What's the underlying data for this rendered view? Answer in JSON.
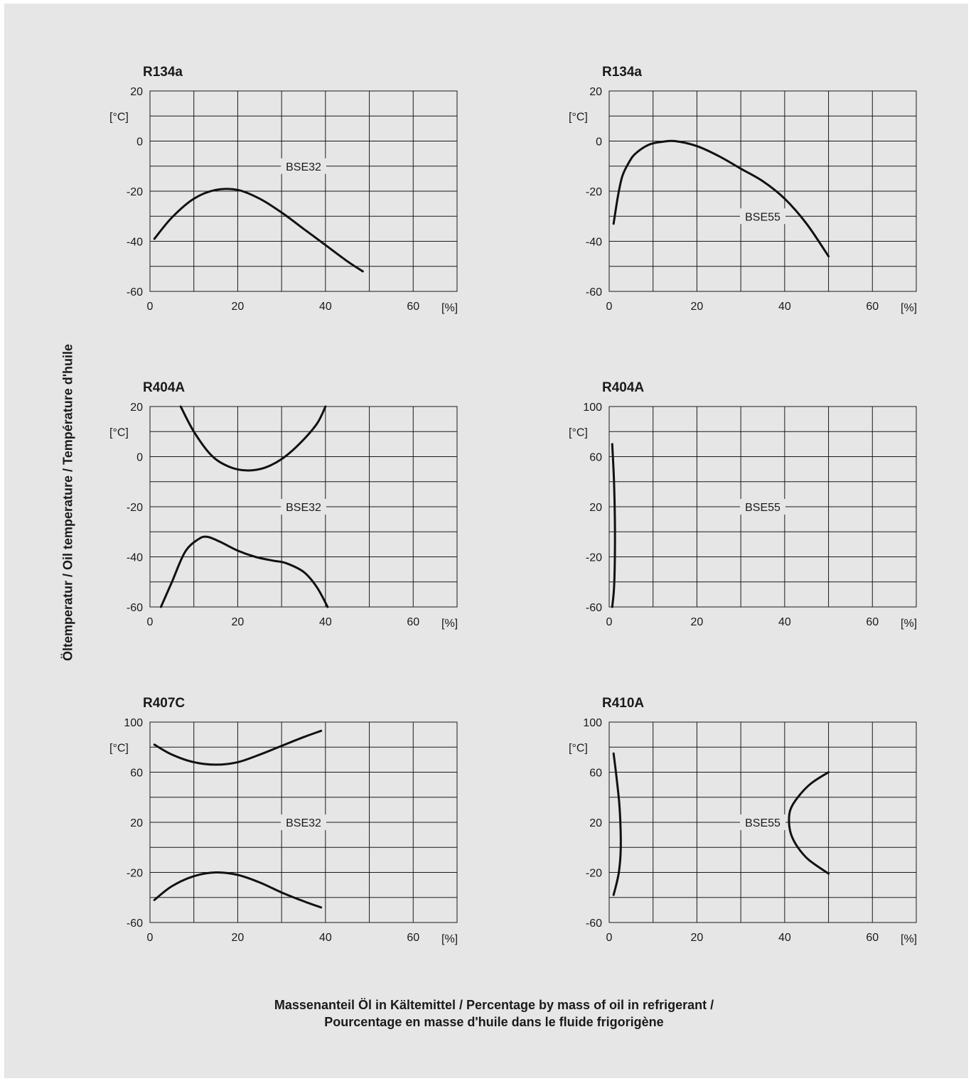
{
  "figure": {
    "ylabel": "Öltemperatur / Oil temperature / Température d'huile",
    "xlabel_line1": "Massenanteil Öl in Kältemittel / Percentage by mass of oil in refrigerant /",
    "xlabel_line2": "Pourcentage en masse d'huile dans le fluide frigorigène",
    "colors": {
      "background": "#e6e6e6",
      "grid": "#1a1a1a",
      "curve": "#111111"
    }
  },
  "chart_data": [
    {
      "type": "line",
      "title": "R134a",
      "oil_label": "BSE32",
      "ylabel": "[°C]",
      "xunit": "[%]",
      "xlim": [
        0,
        70
      ],
      "ylim": [
        -60,
        20
      ],
      "xticks": [
        0,
        20,
        40,
        60
      ],
      "yticks": [
        20,
        0,
        -20,
        -40,
        -60
      ],
      "grid": true,
      "series": [
        {
          "x": [
            1,
            5,
            10,
            15,
            20,
            25,
            30,
            35,
            40,
            45,
            48.5
          ],
          "y": [
            -39,
            -30.5,
            -23,
            -19.5,
            -19.5,
            -23,
            -28.5,
            -35,
            -41.5,
            -48,
            -52
          ]
        }
      ]
    },
    {
      "type": "line",
      "title": "R134a",
      "oil_label": "BSE55",
      "ylabel": "[°C]",
      "xunit": "[%]",
      "xlim": [
        0,
        70
      ],
      "ylim": [
        -60,
        20
      ],
      "xticks": [
        0,
        20,
        40,
        60
      ],
      "yticks": [
        20,
        0,
        -20,
        -40,
        -60
      ],
      "grid": true,
      "series": [
        {
          "x": [
            1,
            2,
            3,
            4.5,
            6,
            9,
            12,
            15,
            20,
            25,
            30,
            35,
            40,
            45,
            50
          ],
          "y": [
            -33,
            -22,
            -14,
            -8.5,
            -5,
            -1.5,
            -0.3,
            0,
            -2,
            -6,
            -11,
            -16,
            -23,
            -33,
            -46
          ]
        }
      ]
    },
    {
      "type": "line",
      "title": "R404A",
      "oil_label": "BSE32",
      "ylabel": "[°C]",
      "xunit": "[%]",
      "xlim": [
        0,
        70
      ],
      "ylim": [
        -60,
        20
      ],
      "xticks": [
        0,
        20,
        40,
        60
      ],
      "yticks": [
        20,
        0,
        -20,
        -40,
        -60
      ],
      "grid": true,
      "series": [
        {
          "x": [
            7,
            10,
            14,
            18,
            22,
            26,
            30,
            34,
            38,
            40
          ],
          "y": [
            20,
            10,
            0.5,
            -4,
            -5.5,
            -4.5,
            -1,
            5,
            13,
            20
          ]
        },
        {
          "x": [
            2.5,
            5,
            8,
            11,
            13,
            16,
            20,
            24,
            28,
            31,
            35,
            38,
            40.5
          ],
          "y": [
            -60,
            -50,
            -38,
            -33,
            -32,
            -34,
            -37.5,
            -40,
            -41.5,
            -42.5,
            -46,
            -52,
            -60
          ]
        }
      ]
    },
    {
      "type": "line",
      "title": "R404A",
      "oil_label": "BSE55",
      "ylabel": "[°C]",
      "xunit": "[%]",
      "xlim": [
        0,
        70
      ],
      "ylim": [
        -60,
        100
      ],
      "xticks": [
        0,
        20,
        40,
        60
      ],
      "yticks": [
        100,
        60,
        20,
        -20,
        -60
      ],
      "grid": true,
      "series": [
        {
          "x": [
            0.7,
            1.1,
            1.3,
            1.3,
            1.1,
            0.7
          ],
          "y": [
            70,
            40,
            10,
            -20,
            -45,
            -60
          ]
        }
      ]
    },
    {
      "type": "line",
      "title": "R407C",
      "oil_label": "BSE32",
      "ylabel": "[°C]",
      "xunit": "[%]",
      "xlim": [
        0,
        70
      ],
      "ylim": [
        -60,
        100
      ],
      "xticks": [
        0,
        20,
        40,
        60
      ],
      "yticks": [
        100,
        60,
        20,
        -20,
        -60
      ],
      "grid": true,
      "series": [
        {
          "x": [
            1,
            5,
            10,
            15,
            20,
            25,
            30,
            35,
            39
          ],
          "y": [
            82,
            74,
            68,
            66,
            68,
            74,
            81,
            88,
            93
          ]
        },
        {
          "x": [
            1,
            5,
            10,
            15,
            20,
            25,
            30,
            35,
            39
          ],
          "y": [
            -42,
            -31,
            -23,
            -20,
            -22,
            -28,
            -36,
            -43,
            -48
          ]
        }
      ]
    },
    {
      "type": "line",
      "title": "R410A",
      "oil_label": "BSE55",
      "ylabel": "[°C]",
      "xunit": "[%]",
      "xlim": [
        0,
        70
      ],
      "ylim": [
        -60,
        100
      ],
      "xticks": [
        0,
        20,
        40,
        60
      ],
      "yticks": [
        100,
        60,
        20,
        -20,
        -60
      ],
      "grid": true,
      "series": [
        {
          "x": [
            1,
            1.7,
            2.3,
            2.6,
            2.6,
            2.2,
            1.6,
            1
          ],
          "y": [
            75,
            55,
            35,
            15,
            -5,
            -20,
            -30,
            -38
          ]
        },
        {
          "x": [
            50,
            46,
            43,
            41.3,
            41,
            41.5,
            43,
            45.5,
            50
          ],
          "y": [
            60,
            51,
            40,
            30,
            20,
            10,
            0,
            -10,
            -21
          ]
        }
      ]
    }
  ]
}
